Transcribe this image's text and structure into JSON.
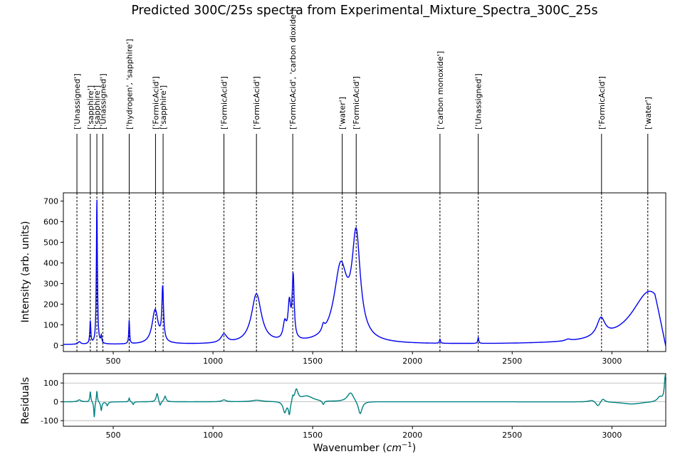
{
  "chart_data": {
    "type": "line",
    "title": "Predicted 300C/25s spectra from Experimental_Mixture_Spectra_300C_25s",
    "xlabel_prefix": "Wavenumber (",
    "xlabel_unit": "cm",
    "xlabel_exp": "−1",
    "xlabel_suffix": ")",
    "ylabel": "Intensity (arb. units)",
    "residual_ylabel": "Residuals",
    "xlim": [
      250,
      3270
    ],
    "ylim": [
      -30,
      740
    ],
    "residual_ylim": [
      -130,
      150
    ],
    "xticks": [
      500,
      1000,
      1500,
      2000,
      2500,
      3000
    ],
    "yticks": [
      0,
      100,
      200,
      300,
      400,
      500,
      600,
      700
    ],
    "residual_yticks": [
      -100,
      0,
      100
    ],
    "residual_gridlines": [
      -100,
      0,
      100
    ],
    "colors": {
      "spectrum": "#0000ee",
      "residual": "#008080",
      "grid": "#b0b0b0"
    },
    "spectrum": {
      "baseline": 3,
      "peaks": [
        {
          "x": 330,
          "h": 12,
          "w": 8
        },
        {
          "x": 385,
          "h": 110,
          "w": 3
        },
        {
          "x": 418,
          "h": 700,
          "w": 3
        },
        {
          "x": 440,
          "h": 35,
          "w": 3
        },
        {
          "x": 580,
          "h": 115,
          "w": 2.5
        },
        {
          "x": 710,
          "h": 165,
          "w": 18
        },
        {
          "x": 748,
          "h": 255,
          "w": 5
        },
        {
          "x": 1055,
          "h": 42,
          "w": 18
        },
        {
          "x": 1218,
          "h": 240,
          "w": 30
        },
        {
          "x": 1360,
          "h": 80,
          "w": 10
        },
        {
          "x": 1383,
          "h": 170,
          "w": 8
        },
        {
          "x": 1402,
          "h": 300,
          "w": 6
        },
        {
          "x": 1553,
          "h": 30,
          "w": 8
        },
        {
          "x": 1640,
          "h": 355,
          "w": 40
        },
        {
          "x": 1718,
          "h": 490,
          "w": 25
        },
        {
          "x": 2138,
          "h": 20,
          "w": 3
        },
        {
          "x": 2330,
          "h": 28,
          "w": 3
        },
        {
          "x": 2780,
          "h": 8,
          "w": 15
        },
        {
          "x": 2945,
          "h": 90,
          "w": 25
        },
        {
          "x": 3190,
          "h": 258,
          "w": 110
        }
      ]
    },
    "residuals": {
      "features": [
        {
          "x": 330,
          "h": 10,
          "w": 10
        },
        {
          "x": 385,
          "h": 55,
          "w": 3
        },
        {
          "x": 405,
          "h": -85,
          "w": 3
        },
        {
          "x": 418,
          "h": 62,
          "w": 3
        },
        {
          "x": 440,
          "h": -45,
          "w": 4
        },
        {
          "x": 470,
          "h": -20,
          "w": 5
        },
        {
          "x": 580,
          "h": 20,
          "w": 3
        },
        {
          "x": 600,
          "h": -15,
          "w": 4
        },
        {
          "x": 720,
          "h": 45,
          "w": 6
        },
        {
          "x": 735,
          "h": -25,
          "w": 5
        },
        {
          "x": 760,
          "h": 30,
          "w": 6
        },
        {
          "x": 1055,
          "h": 10,
          "w": 12
        },
        {
          "x": 1220,
          "h": 8,
          "w": 30
        },
        {
          "x": 1360,
          "h": -60,
          "w": 10
        },
        {
          "x": 1383,
          "h": -70,
          "w": 6
        },
        {
          "x": 1400,
          "h": 25,
          "w": 4
        },
        {
          "x": 1418,
          "h": 60,
          "w": 10
        },
        {
          "x": 1470,
          "h": 30,
          "w": 40
        },
        {
          "x": 1553,
          "h": -20,
          "w": 6
        },
        {
          "x": 1690,
          "h": 50,
          "w": 20
        },
        {
          "x": 1738,
          "h": -70,
          "w": 12
        },
        {
          "x": 2900,
          "h": 10,
          "w": 20
        },
        {
          "x": 2930,
          "h": -25,
          "w": 12
        },
        {
          "x": 2955,
          "h": 18,
          "w": 12
        },
        {
          "x": 3100,
          "h": -12,
          "w": 60
        },
        {
          "x": 3240,
          "h": 25,
          "w": 15
        },
        {
          "x": 3268,
          "h": 140,
          "w": 6
        }
      ]
    },
    "annotations": [
      {
        "x": 318,
        "label": "['Unassigned']"
      },
      {
        "x": 385,
        "label": "['sapphire']"
      },
      {
        "x": 418,
        "label": "['sapphire']"
      },
      {
        "x": 448,
        "label": "['Unassigned']"
      },
      {
        "x": 580,
        "label": "['hydrogen', 'sapphire']"
      },
      {
        "x": 712,
        "label": "['FormicAcid']"
      },
      {
        "x": 750,
        "label": "['sapphire']"
      },
      {
        "x": 1055,
        "label": "['FormicAcid']"
      },
      {
        "x": 1218,
        "label": "['FormicAcid']"
      },
      {
        "x": 1400,
        "label": "['FormicAcid', 'carbon dioxide']"
      },
      {
        "x": 1648,
        "label": "['water']"
      },
      {
        "x": 1718,
        "label": "['FormicAcid']"
      },
      {
        "x": 2138,
        "label": "['carbon monoxide']"
      },
      {
        "x": 2330,
        "label": "['Unassigned']"
      },
      {
        "x": 2948,
        "label": "['FormicAcid']"
      },
      {
        "x": 3180,
        "label": "['water']"
      }
    ]
  }
}
